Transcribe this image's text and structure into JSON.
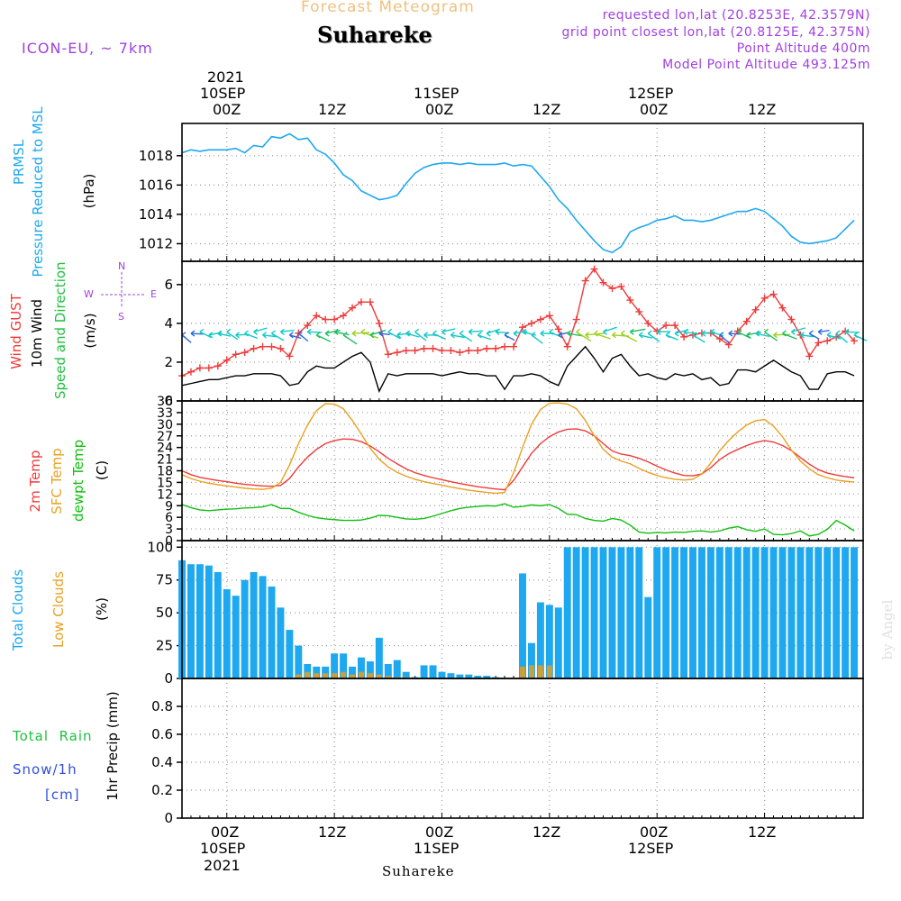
{
  "header": {
    "title_top": "Forecast Meteogram",
    "location": "Suhareke",
    "model": "ICON-EU, ~ 7km",
    "requested": "requested lon,lat (20.8253E, 42.3579N)",
    "gridpoint": "grid point closest lon,lat (20.8125E, 42.375N)",
    "point_alt": "Point Altitude 400m",
    "model_alt": "Model Point Altitude 493.125m",
    "footer_location": "Suhareke",
    "watermark": "by Angel"
  },
  "colors": {
    "pressure": "#1ea8ef",
    "gust": "#ef3a3a",
    "wind": "#000000",
    "t2m": "#ef3a3a",
    "sfc": "#e8a020",
    "dewpt": "#10c010",
    "total_clouds": "#1ea8ef",
    "low_clouds": "#c8a040",
    "purple": "#a040e0",
    "snow": "#3050e0",
    "green": "#20c040"
  },
  "time_axis": {
    "top_year": "2021",
    "ticks_top": [
      {
        "day": "10SEP",
        "hour": "00Z"
      },
      {
        "day": "",
        "hour": "12Z"
      },
      {
        "day": "11SEP",
        "hour": "00Z"
      },
      {
        "day": "",
        "hour": "12Z"
      },
      {
        "day": "12SEP",
        "hour": "00Z"
      },
      {
        "day": "",
        "hour": "12Z"
      }
    ],
    "bottom_year": "2021",
    "ticks_bottom": [
      {
        "hour": "00Z",
        "day": "10SEP"
      },
      {
        "hour": "12Z",
        "day": ""
      },
      {
        "hour": "00Z",
        "day": "11SEP"
      },
      {
        "hour": "12Z",
        "day": ""
      },
      {
        "hour": "00Z",
        "day": "12SEP"
      },
      {
        "hour": "12Z",
        "day": ""
      }
    ],
    "hours_start": -5,
    "hours_end": 71
  },
  "panels": {
    "pressure": {
      "label1": "PRMSL",
      "label2": "Pressure Reduced to MSL",
      "unit": "(hPa)"
    },
    "wind": {
      "label_gust": "Wind GUST",
      "label_wind": "10m Wind",
      "label_dir": "Speed and Direction",
      "unit": "(m/s)",
      "compass_n": "N",
      "compass_s": "S",
      "compass_w": "W",
      "compass_e": "E"
    },
    "temp": {
      "label_t": "2m Temp",
      "label_sfc": "SFC Temp",
      "label_dew": "dewpt Temp",
      "unit": "(C)"
    },
    "clouds": {
      "label_total": "Total Clouds",
      "label_low": "Low Clouds",
      "unit": "(%)"
    },
    "precip": {
      "label_rain": "Total  Rain",
      "label_snow": "Snow/1h",
      "label_cm": "[cm]",
      "unit": "1hr Precip (mm)"
    }
  },
  "chart_data": [
    {
      "type": "line",
      "title": "PRMSL Pressure Reduced to MSL",
      "ylabel": "(hPa)",
      "ylim": [
        1010.8,
        1020.2
      ],
      "yticks": [
        1012,
        1014,
        1016,
        1018
      ],
      "x_hours": [
        -5,
        -4,
        -3,
        -2,
        -1,
        0,
        1,
        2,
        3,
        4,
        5,
        6,
        7,
        8,
        9,
        10,
        11,
        12,
        13,
        14,
        15,
        16,
        17,
        18,
        19,
        20,
        21,
        22,
        23,
        24,
        25,
        26,
        27,
        28,
        29,
        30,
        31,
        32,
        33,
        34,
        35,
        36,
        37,
        38,
        39,
        40,
        41,
        42,
        43,
        44,
        45,
        46,
        47,
        48,
        49,
        50,
        51,
        52,
        53,
        54,
        55,
        56,
        57,
        58,
        59,
        60,
        61,
        62,
        63,
        64,
        65,
        66,
        67,
        68,
        69,
        70
      ],
      "series": [
        {
          "name": "PRMSL",
          "values": [
            1018.2,
            1018.4,
            1018.3,
            1018.4,
            1018.4,
            1018.4,
            1018.5,
            1018.2,
            1018.7,
            1018.6,
            1019.3,
            1019.2,
            1019.5,
            1019.1,
            1019.2,
            1018.4,
            1018.1,
            1017.5,
            1016.7,
            1016.3,
            1015.6,
            1015.3,
            1015.0,
            1015.1,
            1015.3,
            1016.1,
            1016.8,
            1017.2,
            1017.4,
            1017.5,
            1017.5,
            1017.4,
            1017.5,
            1017.4,
            1017.4,
            1017.4,
            1017.5,
            1017.3,
            1017.4,
            1017.3,
            1016.6,
            1015.9,
            1015.0,
            1014.4,
            1013.6,
            1012.9,
            1012.2,
            1011.6,
            1011.4,
            1011.8,
            1012.8,
            1013.1,
            1013.3,
            1013.6,
            1013.7,
            1013.9,
            1013.6,
            1013.6,
            1013.5,
            1013.6,
            1013.8,
            1014.0,
            1014.2,
            1014.2,
            1014.4,
            1014.2,
            1013.7,
            1013.2,
            1012.5,
            1012.1,
            1012.0,
            1012.1,
            1012.2,
            1012.4,
            1013.0,
            1013.6
          ]
        }
      ]
    },
    {
      "type": "line",
      "title": "Wind GUST / 10m Wind Speed and Direction",
      "ylabel": "(m/s)",
      "ylim": [
        0,
        7.2
      ],
      "yticks": [
        0,
        2,
        4,
        6
      ],
      "x_hours": [
        -5,
        -4,
        -3,
        -2,
        -1,
        0,
        1,
        2,
        3,
        4,
        5,
        6,
        7,
        8,
        9,
        10,
        11,
        12,
        13,
        14,
        15,
        16,
        17,
        18,
        19,
        20,
        21,
        22,
        23,
        24,
        25,
        26,
        27,
        28,
        29,
        30,
        31,
        32,
        33,
        34,
        35,
        36,
        37,
        38,
        39,
        40,
        41,
        42,
        43,
        44,
        45,
        46,
        47,
        48,
        49,
        50,
        51,
        52,
        53,
        54,
        55,
        56,
        57,
        58,
        59,
        60,
        61,
        62,
        63,
        64,
        65,
        66,
        67,
        68,
        69,
        70
      ],
      "series": [
        {
          "name": "Wind GUST",
          "values": [
            1.3,
            1.5,
            1.7,
            1.7,
            1.8,
            2.1,
            2.4,
            2.5,
            2.7,
            2.8,
            2.8,
            2.7,
            2.3,
            3.5,
            3.9,
            4.4,
            4.2,
            4.2,
            4.4,
            4.8,
            5.1,
            5.1,
            4.0,
            2.4,
            2.5,
            2.6,
            2.6,
            2.7,
            2.7,
            2.6,
            2.6,
            2.5,
            2.6,
            2.6,
            2.7,
            2.7,
            2.8,
            2.8,
            3.8,
            4.0,
            4.2,
            4.4,
            3.7,
            2.8,
            4.2,
            6.2,
            6.8,
            6.1,
            5.8,
            5.9,
            5.2,
            4.6,
            4.0,
            3.6,
            3.9,
            3.9,
            3.3,
            3.4,
            3.5,
            3.5,
            3.2,
            2.9,
            3.6,
            4.1,
            4.7,
            5.3,
            5.5,
            4.8,
            4.2,
            3.4,
            2.3,
            3.0,
            3.1,
            3.3,
            3.6,
            3.1
          ]
        },
        {
          "name": "10m Wind",
          "values": [
            0.8,
            0.9,
            1.0,
            1.1,
            1.1,
            1.2,
            1.3,
            1.3,
            1.4,
            1.4,
            1.4,
            1.3,
            0.8,
            0.9,
            1.5,
            1.8,
            1.7,
            1.7,
            2.0,
            2.3,
            2.5,
            2.0,
            0.5,
            1.4,
            1.3,
            1.4,
            1.4,
            1.4,
            1.4,
            1.3,
            1.4,
            1.5,
            1.4,
            1.4,
            1.3,
            1.3,
            0.6,
            1.3,
            1.3,
            1.4,
            1.3,
            1.0,
            0.8,
            1.8,
            2.3,
            2.8,
            2.2,
            1.5,
            2.2,
            2.4,
            1.8,
            1.3,
            1.4,
            1.2,
            1.1,
            1.4,
            1.3,
            1.4,
            1.1,
            1.2,
            0.8,
            0.9,
            1.6,
            1.6,
            1.5,
            1.8,
            2.1,
            1.8,
            1.5,
            1.3,
            0.6,
            0.6,
            1.4,
            1.5,
            1.5,
            1.3
          ]
        }
      ]
    },
    {
      "type": "line",
      "title": "2m Temp / SFC Temp / dewpt Temp",
      "ylabel": "(C)",
      "ylim": [
        0,
        36
      ],
      "yticks": [
        0,
        3,
        6,
        9,
        12,
        15,
        18,
        21,
        24,
        27,
        30,
        33,
        36
      ],
      "x_hours": [
        -5,
        -4,
        -3,
        -2,
        -1,
        0,
        1,
        2,
        3,
        4,
        5,
        6,
        7,
        8,
        9,
        10,
        11,
        12,
        13,
        14,
        15,
        16,
        17,
        18,
        19,
        20,
        21,
        22,
        23,
        24,
        25,
        26,
        27,
        28,
        29,
        30,
        31,
        32,
        33,
        34,
        35,
        36,
        37,
        38,
        39,
        40,
        41,
        42,
        43,
        44,
        45,
        46,
        47,
        48,
        49,
        50,
        51,
        52,
        53,
        54,
        55,
        56,
        57,
        58,
        59,
        60,
        61,
        62,
        63,
        64,
        65,
        66,
        67,
        68,
        69,
        70
      ],
      "series": [
        {
          "name": "2m Temp",
          "values": [
            18.0,
            17.0,
            16.3,
            15.9,
            15.5,
            15.2,
            14.8,
            14.5,
            14.3,
            14.1,
            14.0,
            14.2,
            16.0,
            19.0,
            21.5,
            23.5,
            25.0,
            25.8,
            26.2,
            26.1,
            25.5,
            24.4,
            22.9,
            21.2,
            19.8,
            18.5,
            17.5,
            16.8,
            16.2,
            15.7,
            15.2,
            14.7,
            14.3,
            13.9,
            13.6,
            13.3,
            13.1,
            15.5,
            19.0,
            22.5,
            25.0,
            26.8,
            28.0,
            28.7,
            28.8,
            28.3,
            27.0,
            25.0,
            23.1,
            22.3,
            21.9,
            21.2,
            20.3,
            19.2,
            18.2,
            17.4,
            16.8,
            16.7,
            17.2,
            18.8,
            20.9,
            22.4,
            23.5,
            24.5,
            25.3,
            25.8,
            25.4,
            24.5,
            23.2,
            21.4,
            19.7,
            18.3,
            17.4,
            16.9,
            16.5,
            16.2
          ]
        },
        {
          "name": "SFC Temp",
          "values": [
            17.0,
            16.0,
            15.3,
            14.8,
            14.4,
            14.1,
            13.8,
            13.5,
            13.3,
            13.2,
            13.5,
            15.0,
            19.5,
            25.0,
            29.8,
            33.5,
            35.3,
            35.2,
            34.0,
            31.0,
            27.5,
            23.8,
            21.0,
            19.0,
            17.6,
            16.6,
            15.8,
            15.2,
            14.7,
            14.3,
            13.8,
            13.4,
            13.0,
            12.7,
            12.4,
            12.2,
            12.4,
            17.5,
            24.0,
            30.0,
            33.8,
            35.4,
            35.5,
            35.2,
            34.0,
            31.0,
            27.0,
            23.5,
            21.5,
            20.5,
            19.8,
            18.6,
            17.6,
            16.8,
            16.2,
            15.8,
            15.6,
            15.8,
            17.2,
            20.0,
            23.2,
            25.8,
            28.0,
            29.8,
            30.9,
            31.2,
            29.5,
            26.8,
            23.3,
            20.5,
            18.5,
            17.0,
            16.2,
            15.6,
            15.3,
            15.1
          ]
        },
        {
          "name": "dewpt Temp",
          "values": [
            9.3,
            8.5,
            7.9,
            7.7,
            7.9,
            8.1,
            8.2,
            8.4,
            8.5,
            8.7,
            9.3,
            8.3,
            8.3,
            7.3,
            6.5,
            5.9,
            5.6,
            5.4,
            5.2,
            5.2,
            5.3,
            5.8,
            6.5,
            6.4,
            6.0,
            5.6,
            5.5,
            5.7,
            6.3,
            7.0,
            7.7,
            8.3,
            8.6,
            8.8,
            9.0,
            8.9,
            9.5,
            8.6,
            8.8,
            9.2,
            9.0,
            9.3,
            8.3,
            6.8,
            6.7,
            5.7,
            5.2,
            5.0,
            5.7,
            5.3,
            4.0,
            2.2,
            1.9,
            2.1,
            2.0,
            2.2,
            2.1,
            2.4,
            2.5,
            2.2,
            2.5,
            3.2,
            3.6,
            2.8,
            2.4,
            3.0,
            1.6,
            1.5,
            1.8,
            2.5,
            1.2,
            1.6,
            2.9,
            5.2,
            4.0,
            2.5
          ]
        }
      ]
    },
    {
      "type": "bar",
      "title": "Total Clouds / Low Clouds",
      "ylabel": "(%)",
      "ylim": [
        0,
        105
      ],
      "yticks": [
        0,
        25,
        50,
        75,
        100
      ],
      "x_hours": [
        -5,
        -4,
        -3,
        -2,
        -1,
        0,
        1,
        2,
        3,
        4,
        5,
        6,
        7,
        8,
        9,
        10,
        11,
        12,
        13,
        14,
        15,
        16,
        17,
        18,
        19,
        20,
        21,
        22,
        23,
        24,
        25,
        26,
        27,
        28,
        29,
        30,
        31,
        32,
        33,
        34,
        35,
        36,
        37,
        38,
        39,
        40,
        41,
        42,
        43,
        44,
        45,
        46,
        47,
        48,
        49,
        50,
        51,
        52,
        53,
        54,
        55,
        56,
        57,
        58,
        59,
        60,
        61,
        62,
        63,
        64,
        65,
        66,
        67,
        68,
        69,
        70
      ],
      "series": [
        {
          "name": "Total Clouds",
          "values": [
            90,
            87,
            87,
            86,
            81,
            68,
            63,
            75,
            81,
            78,
            70,
            54,
            37,
            25,
            11,
            9,
            9,
            19,
            19,
            9,
            16,
            13,
            31,
            11,
            14,
            5,
            1,
            10,
            10,
            5,
            4,
            3,
            3,
            2,
            2,
            1,
            0,
            0,
            80,
            27,
            58,
            56,
            54,
            100,
            100,
            100,
            100,
            100,
            100,
            100,
            100,
            100,
            62,
            100,
            100,
            100,
            100,
            100,
            100,
            100,
            100,
            100,
            100,
            100,
            100,
            100,
            100,
            100,
            100,
            100,
            100,
            100,
            100,
            100,
            100,
            100
          ]
        },
        {
          "name": "Low Clouds",
          "values": [
            0,
            0,
            0,
            0,
            0,
            0,
            0,
            0,
            0,
            0,
            0,
            0,
            0,
            3,
            5,
            4,
            4,
            4,
            5,
            3,
            5,
            4,
            3,
            2,
            1,
            1,
            0,
            0,
            0,
            0,
            0,
            0,
            0,
            0,
            0,
            0,
            0,
            0,
            9,
            10,
            10,
            10,
            0,
            0,
            0,
            0,
            0,
            0,
            0,
            0,
            0,
            0,
            0,
            0,
            0,
            0,
            0,
            0,
            0,
            0,
            0,
            0,
            0,
            0,
            0,
            0,
            0,
            0,
            0,
            0,
            0,
            0,
            0,
            0,
            0,
            0
          ]
        }
      ]
    },
    {
      "type": "bar",
      "title": "Total Rain / Snow 1h",
      "ylabel": "1hr Precip (mm)",
      "ylim": [
        0,
        1.0
      ],
      "yticks": [
        0,
        0.2,
        0.4,
        0.6,
        0.8
      ],
      "x_hours": [
        -5,
        70
      ],
      "series": [
        {
          "name": "Total Rain",
          "values": [
            0,
            0
          ]
        },
        {
          "name": "Snow/1h",
          "values": [
            0,
            0
          ]
        }
      ]
    }
  ]
}
